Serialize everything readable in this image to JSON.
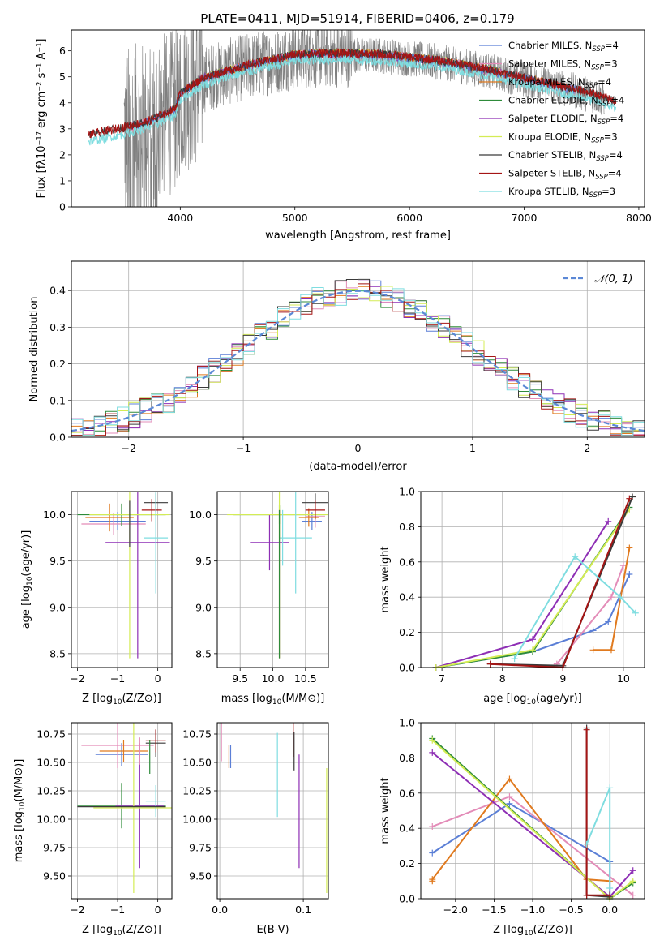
{
  "colors": {
    "chabrier_miles": "#5b7fd6",
    "salpeter_miles": "#e38cb8",
    "kroupa_miles": "#e07a1f",
    "chabrier_elodie": "#2e8b3a",
    "salpeter_elodie": "#8e2fb5",
    "kroupa_elodie": "#d4ec55",
    "chabrier_stelib": "#3a3a3a",
    "salpeter_stelib": "#a51515",
    "kroupa_stelib": "#7fdde0",
    "observed": "#7f7f7f"
  },
  "models": [
    "Chabrier MILES",
    "Salpeter MILES",
    "Kroupa MILES",
    "Chabrier ELODIE",
    "Salpeter ELODIE",
    "Kroupa ELODIE",
    "Chabrier STELIB",
    "Salpeter STELIB",
    "Kroupa STELIB"
  ],
  "chart_data": [
    {
      "id": "spectrum",
      "type": "line",
      "title": "PLATE=0411, MJD=51914, FIBERID=0406, z=0.179",
      "xlabel": "wavelength [Angstrom, rest frame]",
      "ylabel": "Flux [fλ10⁻¹⁷ erg cm⁻² s⁻¹ A⁻¹]",
      "xlim": [
        3050,
        8050
      ],
      "ylim": [
        0,
        6.8
      ],
      "xticks": [
        4000,
        5000,
        6000,
        7000,
        8000
      ],
      "yticks": [
        0,
        1,
        2,
        3,
        4,
        5,
        6
      ],
      "legend_position": "top-right",
      "legend": [
        {
          "label": "Chabrier MILES, N",
          "sub": "SSP",
          "suffix": "=4",
          "color": "chabrier_miles"
        },
        {
          "label": "Salpeter MILES, N",
          "sub": "SSP",
          "suffix": "=3",
          "color": "salpeter_miles"
        },
        {
          "label": "Kroupa MILES, N",
          "sub": "SSP",
          "suffix": "=4",
          "color": "kroupa_miles"
        },
        {
          "label": "Chabrier ELODIE, N",
          "sub": "SSP",
          "suffix": "=4",
          "color": "chabrier_elodie"
        },
        {
          "label": "Salpeter ELODIE, N",
          "sub": "SSP",
          "suffix": "=4",
          "color": "salpeter_elodie"
        },
        {
          "label": "Kroupa ELODIE, N",
          "sub": "SSP",
          "suffix": "=3",
          "color": "kroupa_elodie"
        },
        {
          "label": "Chabrier STELIB, N",
          "sub": "SSP",
          "suffix": "=4",
          "color": "chabrier_stelib"
        },
        {
          "label": "Salpeter STELIB, N",
          "sub": "SSP",
          "suffix": "=4",
          "color": "salpeter_stelib"
        },
        {
          "label": "Kroupa STELIB, N",
          "sub": "SSP",
          "suffix": "=3",
          "color": "kroupa_stelib"
        }
      ],
      "continuum": {
        "x": [
          3200,
          3400,
          3600,
          3700,
          3800,
          3950,
          4000,
          4200,
          4500,
          4800,
          5000,
          5200,
          5500,
          5800,
          6000,
          6300,
          6600,
          6800,
          7000,
          7300,
          7600,
          7800
        ],
        "y": [
          2.7,
          2.9,
          3.1,
          3.2,
          3.4,
          3.7,
          4.3,
          4.9,
          5.3,
          5.6,
          5.8,
          5.85,
          5.85,
          5.8,
          5.7,
          5.55,
          5.3,
          5.1,
          4.9,
          4.6,
          4.3,
          4.0
        ]
      },
      "series_ranges": {
        "stelib": [
          3200,
          7800
        ],
        "kroupa_stelib": [
          3200,
          7800
        ],
        "elodie": [
          4000,
          6800
        ],
        "miles": [
          3550,
          7450
        ]
      },
      "observed_range": [
        3510,
        7700
      ]
    },
    {
      "id": "residuals",
      "type": "step",
      "xlabel": "(data-model)/error",
      "ylabel": "Normed distribution",
      "xlim": [
        -2.5,
        2.5
      ],
      "ylim": [
        0,
        0.48
      ],
      "xticks": [
        -2,
        -1,
        0,
        1,
        2
      ],
      "yticks": [
        0.0,
        0.1,
        0.2,
        0.3,
        0.4
      ],
      "legend_position": "top-right",
      "reference_label": "𝒩(0, 1)",
      "reference": {
        "mean": 0,
        "sigma": 1,
        "color": "#5b88d6"
      },
      "bin_width": 0.1,
      "bin_start": -2.5
    },
    {
      "id": "age_vs_Z",
      "type": "errorbar",
      "xlabel": "Z [log10(Z/Z⊙)]",
      "ylabel": "age  [log10(age/yr)]",
      "xlim": [
        -2.15,
        0.35
      ],
      "ylim": [
        8.35,
        10.25
      ],
      "xticks": [
        -2,
        -1,
        0
      ],
      "yticks": [
        8.5,
        9.0,
        9.5,
        10.0
      ],
      "points": [
        {
          "m": "chabrier_miles",
          "x": -1.0,
          "xe": 0.7,
          "y": 9.93,
          "ye": 0.1
        },
        {
          "m": "salpeter_miles",
          "x": -1.1,
          "xe": 0.8,
          "y": 9.9,
          "ye": 0.12
        },
        {
          "m": "kroupa_miles",
          "x": -1.2,
          "xe": 0.6,
          "y": 9.97,
          "ye": 0.15
        },
        {
          "m": "chabrier_elodie",
          "x": -0.9,
          "xe": 1.1,
          "y": 10.0,
          "ye": 0.12
        },
        {
          "m": "salpeter_elodie",
          "x": -0.5,
          "xe": 0.8,
          "y": 9.7,
          "ye": 1.25
        },
        {
          "m": "kroupa_elodie",
          "x": -0.7,
          "xe": 1.0,
          "y": 10.0,
          "ye": 1.55
        },
        {
          "m": "chabrier_stelib",
          "x": -0.05,
          "xe": 0.3,
          "y": 10.13,
          "ye": 0.1
        },
        {
          "m": "salpeter_stelib",
          "x": -0.15,
          "xe": 0.25,
          "y": 10.05,
          "ye": 0.12
        },
        {
          "m": "kroupa_stelib",
          "x": -0.05,
          "xe": 0.3,
          "y": 9.75,
          "ye": 0.6
        },
        {
          "m": "chabrier_stelib",
          "x": -0.7,
          "xe": 0.0,
          "y": 9.9,
          "ye": 0.25
        },
        {
          "m": "kroupa_elodie",
          "x": -1.9,
          "xe": 0.0,
          "y": 10.0,
          "ye": 0.0
        }
      ]
    },
    {
      "id": "age_vs_mass",
      "type": "errorbar",
      "xlabel": "mass [log10(M/M⊙)]",
      "ylabel": "",
      "xlim": [
        9.15,
        10.85
      ],
      "ylim": [
        8.35,
        10.25
      ],
      "xticks": [
        9.5,
        10.0,
        10.5
      ],
      "yticks": [
        8.5,
        9.0,
        9.5,
        10.0
      ],
      "points": [
        {
          "m": "chabrier_miles",
          "x": 10.6,
          "xe": 0.15,
          "y": 9.93,
          "ye": 0.1
        },
        {
          "m": "salpeter_miles",
          "x": 10.65,
          "xe": 0.15,
          "y": 9.98,
          "ye": 0.12
        },
        {
          "m": "kroupa_miles",
          "x": 10.55,
          "xe": 0.15,
          "y": 9.97,
          "ye": 0.1
        },
        {
          "m": "chabrier_elodie",
          "x": 10.1,
          "xe": 0.7,
          "y": 10.0,
          "ye": 0.1
        },
        {
          "m": "salpeter_elodie",
          "x": 9.95,
          "xe": 0.3,
          "y": 9.7,
          "ye": 0.3
        },
        {
          "m": "kroupa_elodie",
          "x": 10.1,
          "xe": 0.8,
          "y": 10.0,
          "ye": 0.25
        },
        {
          "m": "chabrier_stelib",
          "x": 10.65,
          "xe": 0.2,
          "y": 10.13,
          "ye": 0.1
        },
        {
          "m": "salpeter_stelib",
          "x": 10.65,
          "xe": 0.15,
          "y": 10.05,
          "ye": 0.1
        },
        {
          "m": "kroupa_stelib",
          "x": 10.35,
          "xe": 0.25,
          "y": 9.75,
          "ye": 0.6
        },
        {
          "m": "kroupa_miles",
          "x": 10.1,
          "xe": 0.0,
          "y": 9.25,
          "ye": 0.8
        },
        {
          "m": "chabrier_elodie",
          "x": 10.1,
          "xe": 0.0,
          "y": 9.25,
          "ye": 0.8
        },
        {
          "m": "kroupa_stelib",
          "x": 10.15,
          "xe": 0.0,
          "y": 9.75,
          "ye": 0.3
        }
      ]
    },
    {
      "id": "weight_vs_age",
      "type": "line",
      "xlabel": "age  [log10(age/yr)]",
      "ylabel": "mass weight",
      "xlim": [
        6.65,
        10.35
      ],
      "ylim": [
        0,
        1.0
      ],
      "xticks": [
        7,
        8,
        9,
        10
      ],
      "yticks": [
        0.0,
        0.2,
        0.4,
        0.6,
        0.8,
        1.0
      ],
      "series": [
        {
          "m": "chabrier_miles",
          "x": [
            6.9,
            8.5,
            9.5,
            9.75,
            10.1
          ],
          "y": [
            0.0,
            0.09,
            0.21,
            0.26,
            0.53
          ]
        },
        {
          "m": "salpeter_miles",
          "x": [
            8.9,
            9.8,
            10.0
          ],
          "y": [
            0.02,
            0.4,
            0.58
          ]
        },
        {
          "m": "kroupa_miles",
          "x": [
            9.5,
            9.8,
            10.1
          ],
          "y": [
            0.1,
            0.1,
            0.68
          ]
        },
        {
          "m": "chabrier_elodie",
          "x": [
            6.9,
            8.5,
            10.1
          ],
          "y": [
            0.0,
            0.09,
            0.91
          ]
        },
        {
          "m": "salpeter_elodie",
          "x": [
            6.9,
            8.5,
            9.75
          ],
          "y": [
            0.0,
            0.16,
            0.83
          ]
        },
        {
          "m": "kroupa_elodie",
          "x": [
            6.9,
            8.5,
            10.1
          ],
          "y": [
            0.0,
            0.1,
            0.9
          ]
        },
        {
          "m": "chabrier_stelib",
          "x": [
            7.8,
            9.0,
            10.15
          ],
          "y": [
            0.02,
            0.01,
            0.97
          ]
        },
        {
          "m": "salpeter_stelib",
          "x": [
            7.8,
            9.0,
            10.1
          ],
          "y": [
            0.02,
            0.0,
            0.96
          ]
        },
        {
          "m": "kroupa_stelib",
          "x": [
            8.2,
            9.2,
            9.95,
            10.2
          ],
          "y": [
            0.05,
            0.63,
            0.4,
            0.31
          ]
        }
      ]
    },
    {
      "id": "mass_vs_Z",
      "type": "errorbar",
      "xlabel": "Z [log10(Z/Z⊙)]",
      "ylabel": "mass [log10(M/M⊙)]",
      "xlim": [
        -2.15,
        0.35
      ],
      "ylim": [
        9.3,
        10.85
      ],
      "xticks": [
        -2,
        -1,
        0
      ],
      "yticks": [
        9.5,
        9.75,
        10.0,
        10.25,
        10.5,
        10.75
      ],
      "points": [
        {
          "m": "chabrier_miles",
          "x": -0.9,
          "xe": 0.65,
          "y": 10.57,
          "ye": 0.1
        },
        {
          "m": "salpeter_miles",
          "x": -1.0,
          "xe": 0.9,
          "y": 10.65,
          "ye": 0.2
        },
        {
          "m": "kroupa_miles",
          "x": -0.85,
          "xe": 0.6,
          "y": 10.6,
          "ye": 0.1
        },
        {
          "m": "chabrier_elodie",
          "x": -0.9,
          "xe": 1.1,
          "y": 10.12,
          "ye": 0.2
        },
        {
          "m": "salpeter_elodie",
          "x": -0.45,
          "xe": 0.6,
          "y": 10.12,
          "ye": 0.55
        },
        {
          "m": "kroupa_elodie",
          "x": -0.6,
          "xe": 1.0,
          "y": 10.1,
          "ye": 0.75
        },
        {
          "m": "chabrier_stelib",
          "x": -0.05,
          "xe": 0.25,
          "y": 10.67,
          "ye": 0.12
        },
        {
          "m": "salpeter_stelib",
          "x": -0.05,
          "xe": 0.25,
          "y": 10.69,
          "ye": 0.1
        },
        {
          "m": "kroupa_stelib",
          "x": -0.05,
          "xe": 0.25,
          "y": 10.16,
          "ye": 0.14
        },
        {
          "m": "chabrier_stelib",
          "x": -0.9,
          "xe": 1.1,
          "y": 10.11,
          "ye": 0.0
        },
        {
          "m": "chabrier_elodie",
          "x": -0.2,
          "xe": 0.0,
          "y": 10.55,
          "ye": 0.15
        },
        {
          "m": "salpeter_miles",
          "x": -0.45,
          "xe": 0.0,
          "y": 10.6,
          "ye": 0.12
        }
      ]
    },
    {
      "id": "mass_vs_EBV",
      "type": "errorbar",
      "xlabel": "E(B-V)",
      "ylabel": "",
      "xlim": [
        -0.003,
        0.13
      ],
      "ylim": [
        9.3,
        10.85
      ],
      "xticks": [
        0.0,
        0.1
      ],
      "yticks": [
        9.5,
        9.75,
        10.0,
        10.25,
        10.5,
        10.75
      ],
      "points": [
        {
          "m": "salpeter_miles",
          "x": 0.002,
          "xe": 0,
          "y": 10.68,
          "ye": 0.17
        },
        {
          "m": "kroupa_miles",
          "x": 0.011,
          "xe": 0,
          "y": 10.55,
          "ye": 0.1
        },
        {
          "m": "chabrier_miles",
          "x": 0.013,
          "xe": 0,
          "y": 10.55,
          "ye": 0.1
        },
        {
          "m": "kroupa_stelib",
          "x": 0.069,
          "xe": 0,
          "y": 10.39,
          "ye": 0.37
        },
        {
          "m": "salpeter_stelib",
          "x": 0.088,
          "xe": 0,
          "y": 10.7,
          "ye": 0.15
        },
        {
          "m": "chabrier_stelib",
          "x": 0.089,
          "xe": 0,
          "y": 10.6,
          "ye": 0.17
        },
        {
          "m": "salpeter_elodie",
          "x": 0.095,
          "xe": 0,
          "y": 10.07,
          "ye": 0.5
        },
        {
          "m": "kroupa_elodie",
          "x": 0.128,
          "xe": 0,
          "y": 9.9,
          "ye": 0.55
        }
      ]
    },
    {
      "id": "weight_vs_Z",
      "type": "line",
      "xlabel": "Z [log10(Z/Z⊙)]",
      "ylabel": "mass weight",
      "xlim": [
        -2.45,
        0.45
      ],
      "ylim": [
        0,
        1.0
      ],
      "xticks": [
        -2.0,
        -1.5,
        -1.0,
        -0.5,
        0.0
      ],
      "yticks": [
        0.0,
        0.2,
        0.4,
        0.6,
        0.8,
        1.0
      ],
      "series": [
        {
          "m": "chabrier_miles",
          "x": [
            -2.3,
            -1.3,
            0.0,
            0.0
          ],
          "y": [
            0.26,
            0.54,
            0.21,
            0.0
          ]
        },
        {
          "m": "salpeter_miles",
          "x": [
            -2.3,
            -1.3,
            0.3
          ],
          "y": [
            0.41,
            0.58,
            0.02
          ]
        },
        {
          "m": "kroupa_miles",
          "x": [
            -2.3,
            -2.3,
            -1.3,
            -0.3,
            0.0
          ],
          "y": [
            0.1,
            0.11,
            0.68,
            0.11,
            0.1
          ]
        },
        {
          "m": "chabrier_elodie",
          "x": [
            -2.3,
            0.0,
            0.3
          ],
          "y": [
            0.91,
            0.0,
            0.09
          ]
        },
        {
          "m": "salpeter_elodie",
          "x": [
            -2.3,
            0.0,
            0.3
          ],
          "y": [
            0.83,
            0.01,
            0.16
          ]
        },
        {
          "m": "kroupa_elodie",
          "x": [
            -2.3,
            0.0,
            0.3
          ],
          "y": [
            0.9,
            0.0,
            0.1
          ]
        },
        {
          "m": "chabrier_stelib",
          "x": [
            -0.3,
            -0.3,
            0.0
          ],
          "y": [
            0.97,
            0.02,
            0.01
          ]
        },
        {
          "m": "salpeter_stelib",
          "x": [
            -0.3,
            -0.3,
            0.0
          ],
          "y": [
            0.96,
            0.02,
            0.02
          ]
        },
        {
          "m": "kroupa_stelib",
          "x": [
            -0.3,
            0.0,
            0.0
          ],
          "y": [
            0.31,
            0.63,
            0.06
          ]
        }
      ]
    }
  ]
}
